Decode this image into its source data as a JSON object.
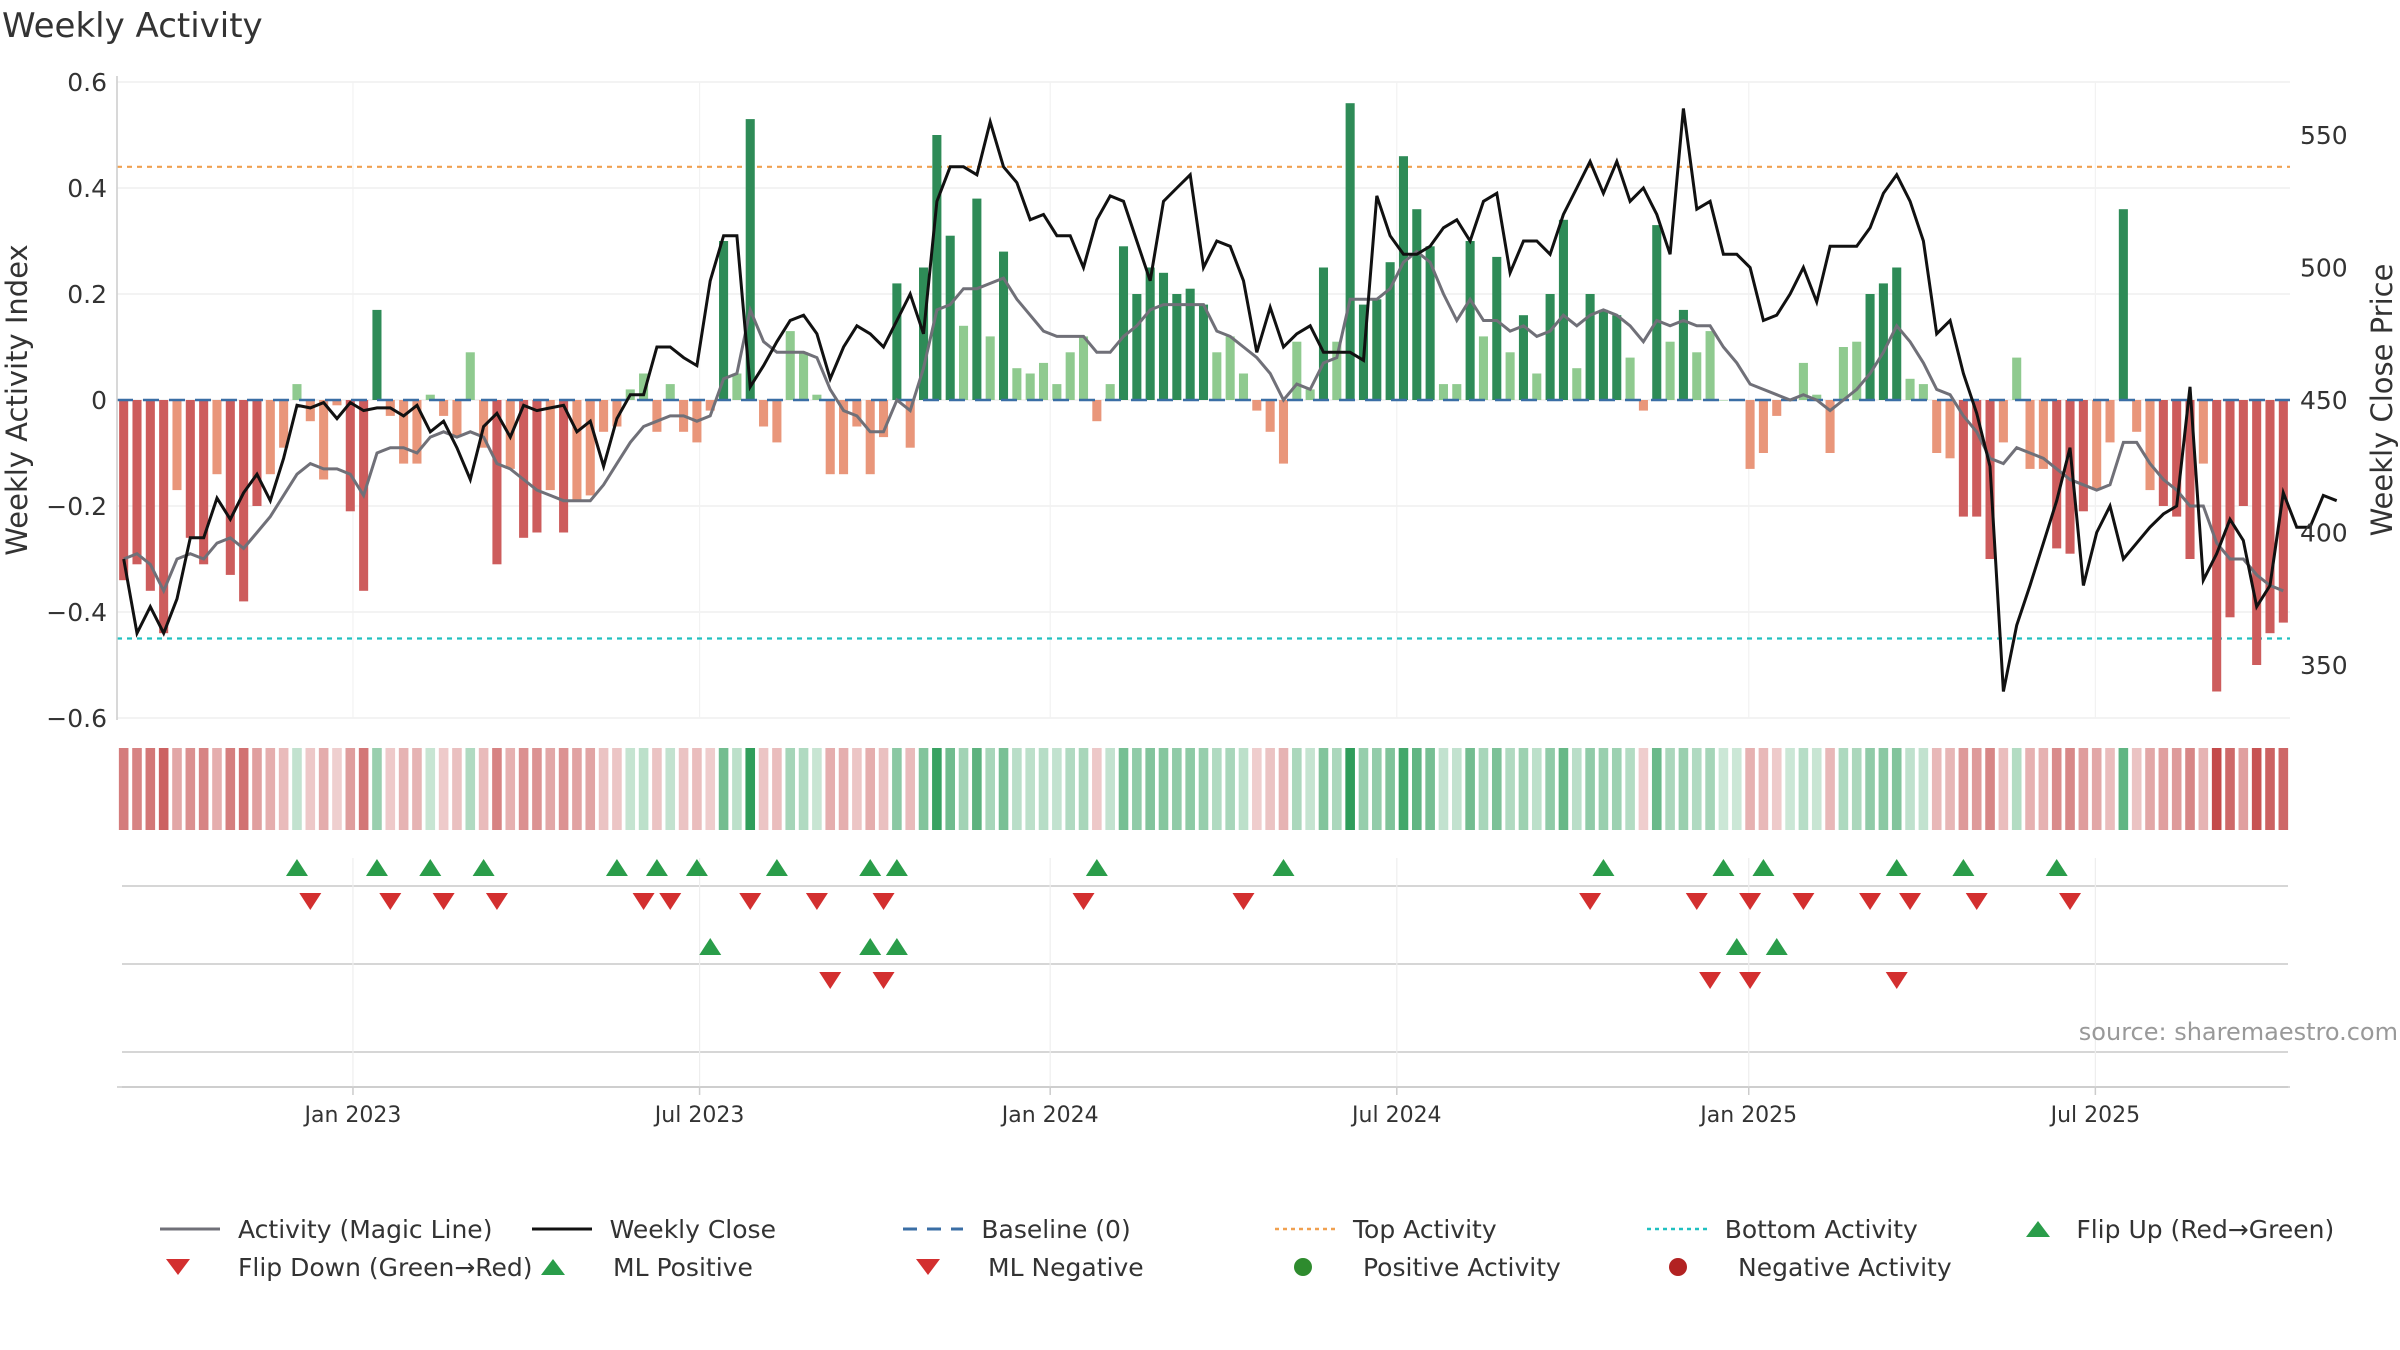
{
  "title": "Weekly Activity",
  "source": "source: sharemaestro.com",
  "colors": {
    "pos_strong": "#2e8b57",
    "pos_light": "#8fca8f",
    "neg_strong": "#cd5c5c",
    "neg_light": "#e9967a",
    "magic_line": "#707078",
    "close_line": "#111111",
    "baseline": "#3a6ea5",
    "top": "#f0a050",
    "bottom": "#20c0c0",
    "flip_up": "#2a9d4a",
    "flip_down": "#d32f2f"
  },
  "chart_data": {
    "type": "bar",
    "title": "Weekly Activity",
    "ylabel": "Weekly Activity Index",
    "y2label": "Weekly Close Price",
    "ylim": [
      -0.6,
      0.6
    ],
    "y2lim": [
      330,
      570
    ],
    "yticks": [
      "0.6",
      "0.4",
      "0.2",
      "0",
      "−0.2",
      "−0.4",
      "−0.6"
    ],
    "y2ticks": [
      "550",
      "500",
      "450",
      "400",
      "350"
    ],
    "xticks": [
      "Jan 2023",
      "Jul 2023",
      "Jan 2024",
      "Jul 2024",
      "Jan 2025",
      "Jul 2025"
    ],
    "top_activity": 0.44,
    "bottom_activity": -0.45,
    "baseline": 0,
    "activity": [
      -0.34,
      -0.31,
      -0.36,
      -0.44,
      -0.17,
      -0.26,
      -0.31,
      -0.14,
      -0.33,
      -0.38,
      -0.2,
      -0.14,
      -0.09,
      0.03,
      -0.04,
      -0.15,
      -0.01,
      -0.21,
      -0.36,
      0.17,
      -0.03,
      -0.12,
      -0.12,
      0.01,
      -0.03,
      -0.07,
      0.09,
      -0.09,
      -0.31,
      -0.13,
      -0.26,
      -0.25,
      -0.17,
      -0.25,
      -0.19,
      -0.18,
      -0.06,
      -0.05,
      0.02,
      0.05,
      -0.06,
      0.03,
      -0.06,
      -0.08,
      -0.02,
      0.3,
      0.05,
      0.53,
      -0.05,
      -0.08,
      0.13,
      0.09,
      0.01,
      -0.14,
      -0.14,
      -0.05,
      -0.14,
      -0.07,
      0.22,
      -0.09,
      0.25,
      0.5,
      0.31,
      0.14,
      0.38,
      0.12,
      0.28,
      0.06,
      0.05,
      0.07,
      0.03,
      0.09,
      0.12,
      -0.04,
      0.03,
      0.29,
      0.2,
      0.25,
      0.24,
      0.2,
      0.21,
      0.18,
      0.09,
      0.12,
      0.05,
      -0.02,
      -0.06,
      -0.12,
      0.11,
      0.02,
      0.25,
      0.11,
      0.56,
      0.18,
      0.19,
      0.26,
      0.46,
      0.36,
      0.29,
      0.03,
      0.03,
      0.3,
      0.12,
      0.27,
      0.09,
      0.16,
      0.05,
      0.2,
      0.34,
      0.06,
      0.2,
      0.17,
      0.16,
      0.08,
      -0.02,
      0.33,
      0.11,
      0.17,
      0.09,
      0.13,
      0.0,
      0.0,
      -0.13,
      -0.1,
      -0.03,
      0.0,
      0.07,
      0.01,
      -0.1,
      0.1,
      0.11,
      0.2,
      0.22,
      0.25,
      0.04,
      0.03,
      -0.1,
      -0.11,
      -0.22,
      -0.22,
      -0.3,
      -0.08,
      0.08,
      -0.13,
      -0.13,
      -0.28,
      -0.29,
      -0.21,
      -0.17,
      -0.08,
      0.36,
      -0.06,
      -0.17,
      -0.2,
      -0.22,
      -0.3,
      -0.12,
      -0.55,
      -0.41,
      -0.2,
      -0.5,
      -0.44,
      -0.42
    ],
    "magic_line": [
      -0.3,
      -0.29,
      -0.31,
      -0.36,
      -0.3,
      -0.29,
      -0.3,
      -0.27,
      -0.26,
      -0.28,
      -0.25,
      -0.22,
      -0.18,
      -0.14,
      -0.12,
      -0.13,
      -0.13,
      -0.14,
      -0.18,
      -0.1,
      -0.09,
      -0.09,
      -0.1,
      -0.07,
      -0.06,
      -0.07,
      -0.06,
      -0.07,
      -0.12,
      -0.13,
      -0.15,
      -0.17,
      -0.18,
      -0.19,
      -0.19,
      -0.19,
      -0.16,
      -0.12,
      -0.08,
      -0.05,
      -0.04,
      -0.03,
      -0.03,
      -0.04,
      -0.03,
      0.04,
      0.05,
      0.17,
      0.11,
      0.09,
      0.09,
      0.09,
      0.08,
      0.02,
      -0.02,
      -0.03,
      -0.06,
      -0.06,
      0.0,
      -0.02,
      0.06,
      0.17,
      0.18,
      0.21,
      0.21,
      0.22,
      0.23,
      0.19,
      0.16,
      0.13,
      0.12,
      0.12,
      0.12,
      0.09,
      0.09,
      0.12,
      0.14,
      0.17,
      0.18,
      0.18,
      0.18,
      0.18,
      0.13,
      0.12,
      0.1,
      0.08,
      0.05,
      0.0,
      0.03,
      0.02,
      0.07,
      0.08,
      0.19,
      0.19,
      0.19,
      0.21,
      0.26,
      0.28,
      0.26,
      0.2,
      0.15,
      0.19,
      0.15,
      0.15,
      0.13,
      0.14,
      0.12,
      0.13,
      0.16,
      0.14,
      0.16,
      0.17,
      0.16,
      0.14,
      0.11,
      0.15,
      0.14,
      0.15,
      0.14,
      0.14,
      0.1,
      0.07,
      0.03,
      0.02,
      0.01,
      0.0,
      0.01,
      0.0,
      -0.02,
      0.0,
      0.02,
      0.05,
      0.09,
      0.14,
      0.11,
      0.07,
      0.02,
      0.01,
      -0.03,
      -0.06,
      -0.11,
      -0.12,
      -0.09,
      -0.1,
      -0.11,
      -0.13,
      -0.15,
      -0.16,
      -0.17,
      -0.16,
      -0.08,
      -0.08,
      -0.12,
      -0.15,
      -0.17,
      -0.2,
      -0.2,
      -0.27,
      -0.3,
      -0.3,
      -0.33,
      -0.35,
      -0.36
    ],
    "weekly_close": [
      390,
      362,
      372,
      362,
      375,
      398,
      398,
      413,
      405,
      415,
      422,
      412,
      428,
      448,
      447,
      449,
      443,
      449,
      446,
      447,
      447,
      444,
      448,
      438,
      442,
      432,
      420,
      440,
      445,
      436,
      448,
      446,
      447,
      448,
      438,
      442,
      425,
      443,
      452,
      452,
      470,
      470,
      466,
      463,
      495,
      512,
      512,
      455,
      463,
      472,
      480,
      482,
      475,
      458,
      470,
      478,
      475,
      470,
      480,
      490,
      475,
      525,
      538,
      538,
      535,
      555,
      538,
      532,
      518,
      520,
      512,
      512,
      500,
      518,
      527,
      525,
      510,
      495,
      525,
      530,
      535,
      500,
      510,
      508,
      495,
      468,
      485,
      470,
      475,
      478,
      468,
      468,
      468,
      465,
      527,
      512,
      505,
      505,
      508,
      515,
      518,
      510,
      525,
      528,
      498,
      510,
      510,
      505,
      520,
      530,
      540,
      528,
      540,
      525,
      530,
      520,
      505,
      560,
      522,
      525,
      505,
      505,
      500,
      480,
      482,
      490,
      500,
      487,
      508,
      508,
      508,
      515,
      528,
      535,
      525,
      510,
      475,
      480,
      460,
      445,
      425,
      340,
      365,
      380,
      396,
      412,
      432,
      380,
      400,
      410,
      390,
      396,
      402,
      407,
      410,
      455,
      382,
      392,
      405,
      397,
      372,
      380,
      415,
      402,
      402,
      414,
      412
    ],
    "flips": {
      "rows": [
        "flip_up",
        "flip_down",
        "ml_positive",
        "ml_negative",
        "positive_activity",
        "negative_activity"
      ],
      "flip_up_weeks": [
        13,
        19,
        23,
        27,
        37,
        40,
        43,
        49,
        56,
        58,
        73,
        87,
        111,
        120,
        123,
        133,
        138,
        145
      ],
      "flip_down_weeks": [
        14,
        20,
        24,
        28,
        39,
        41,
        47,
        52,
        57,
        72,
        84,
        110,
        118,
        122,
        126,
        131,
        134,
        139,
        146
      ],
      "ml_positive_weeks": [
        44,
        56,
        58,
        121,
        124
      ],
      "ml_negative_weeks": [
        53,
        57,
        119,
        122,
        133
      ],
      "positive_activity_weeks": [],
      "negative_activity_weeks": []
    },
    "legend": [
      {
        "key": "magic",
        "label": "Activity (Magic Line)"
      },
      {
        "key": "close",
        "label": "Weekly Close"
      },
      {
        "key": "baseline",
        "label": "Baseline (0)"
      },
      {
        "key": "top",
        "label": "Top Activity"
      },
      {
        "key": "bottom",
        "label": "Bottom Activity"
      },
      {
        "key": "flipup",
        "label": "Flip Up (Red→Green)"
      },
      {
        "key": "flipdown",
        "label": "Flip Down (Green→Red)"
      },
      {
        "key": "mlpos",
        "label": "ML Positive"
      },
      {
        "key": "mlneg",
        "label": "ML Negative"
      },
      {
        "key": "posact",
        "label": "Positive Activity"
      },
      {
        "key": "negact",
        "label": "Negative Activity"
      }
    ]
  }
}
